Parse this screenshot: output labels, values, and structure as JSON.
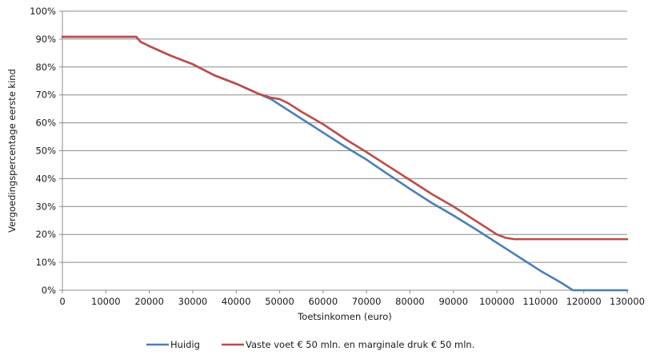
{
  "chart_data": {
    "type": "line",
    "title": "",
    "xlabel": "Toetsinkomen (euro)",
    "ylabel": "Vergoedingspercentage eerste kind",
    "xlim": [
      0,
      130000
    ],
    "ylim": [
      0,
      100
    ],
    "x_ticks": [
      0,
      10000,
      20000,
      30000,
      40000,
      50000,
      60000,
      70000,
      80000,
      90000,
      100000,
      110000,
      120000,
      130000
    ],
    "x_tick_labels": [
      "0",
      "10000",
      "20000",
      "30000",
      "40000",
      "50000",
      "60000",
      "70000",
      "80000",
      "90000",
      "100000",
      "110000",
      "120000",
      "130000"
    ],
    "y_ticks": [
      0,
      10,
      20,
      30,
      40,
      50,
      60,
      70,
      80,
      90,
      100
    ],
    "y_tick_labels": [
      "0%",
      "10%",
      "20%",
      "30%",
      "40%",
      "50%",
      "60%",
      "70%",
      "80%",
      "90%",
      "100%"
    ],
    "grid": "horizontal",
    "legend_position": "bottom",
    "series": [
      {
        "name": "Huidig",
        "color": "#4a7ebb",
        "points": [
          [
            0,
            90.8
          ],
          [
            17000,
            90.8
          ],
          [
            18000,
            89.0
          ],
          [
            20000,
            87.5
          ],
          [
            25000,
            84.0
          ],
          [
            30000,
            81.0
          ],
          [
            35000,
            77.0
          ],
          [
            40000,
            74.0
          ],
          [
            45000,
            70.5
          ],
          [
            48000,
            68.5
          ],
          [
            50000,
            66.5
          ],
          [
            55000,
            61.5
          ],
          [
            60000,
            56.5
          ],
          [
            65000,
            51.5
          ],
          [
            70000,
            46.8
          ],
          [
            75000,
            41.5
          ],
          [
            80000,
            36.3
          ],
          [
            85000,
            31.3
          ],
          [
            90000,
            26.8
          ],
          [
            95000,
            22.0
          ],
          [
            100000,
            17.0
          ],
          [
            105000,
            12.0
          ],
          [
            110000,
            7.0
          ],
          [
            115000,
            2.5
          ],
          [
            117500,
            0.0
          ],
          [
            130000,
            0.0
          ]
        ]
      },
      {
        "name": "Vaste voet € 50 mln. en marginale druk € 50 mln.",
        "color": "#be4b48",
        "points": [
          [
            0,
            90.8
          ],
          [
            17000,
            90.8
          ],
          [
            18000,
            89.0
          ],
          [
            20000,
            87.5
          ],
          [
            25000,
            84.0
          ],
          [
            30000,
            81.0
          ],
          [
            35000,
            77.0
          ],
          [
            40000,
            74.0
          ],
          [
            45000,
            70.5
          ],
          [
            48000,
            69.0
          ],
          [
            50000,
            68.5
          ],
          [
            52000,
            67.0
          ],
          [
            55000,
            64.0
          ],
          [
            60000,
            59.5
          ],
          [
            65000,
            54.3
          ],
          [
            70000,
            49.5
          ],
          [
            75000,
            44.5
          ],
          [
            80000,
            39.5
          ],
          [
            85000,
            34.5
          ],
          [
            90000,
            30.0
          ],
          [
            95000,
            25.0
          ],
          [
            100000,
            20.0
          ],
          [
            102000,
            18.8
          ],
          [
            104000,
            18.3
          ],
          [
            130000,
            18.3
          ]
        ]
      }
    ]
  }
}
